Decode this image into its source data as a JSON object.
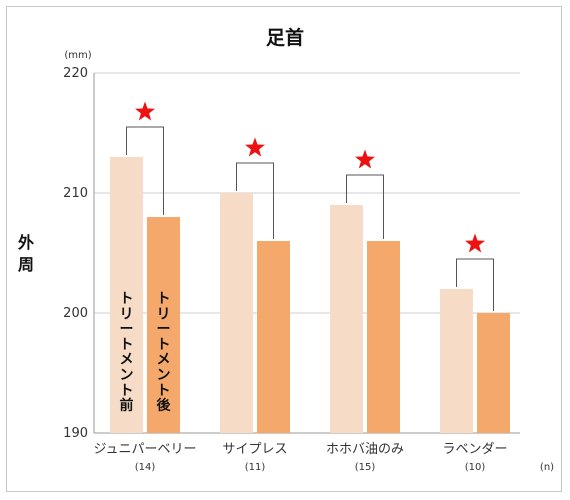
{
  "chart_data": {
    "type": "bar",
    "title": "足首",
    "ylabel": "外周",
    "yunit": "(mm)",
    "xunit": "(n)",
    "ylim": [
      190,
      220
    ],
    "yticks": [
      "190",
      "200",
      "210",
      "220"
    ],
    "categories": [
      "ジュニパーベリー",
      "サイプレス",
      "ホホバ油のみ",
      "ラベンダー"
    ],
    "counts": [
      "(14)",
      "(11)",
      "(15)",
      "(10)"
    ],
    "series": [
      {
        "name": "トリートメント前",
        "values": [
          213,
          210,
          209,
          202
        ]
      },
      {
        "name": "トリートメント後",
        "values": [
          208,
          206,
          206,
          200
        ]
      }
    ],
    "colors": [
      "#f6dcc6",
      "#f4a86b"
    ],
    "significance_marker": "★",
    "significance_color": "#ee1111"
  }
}
